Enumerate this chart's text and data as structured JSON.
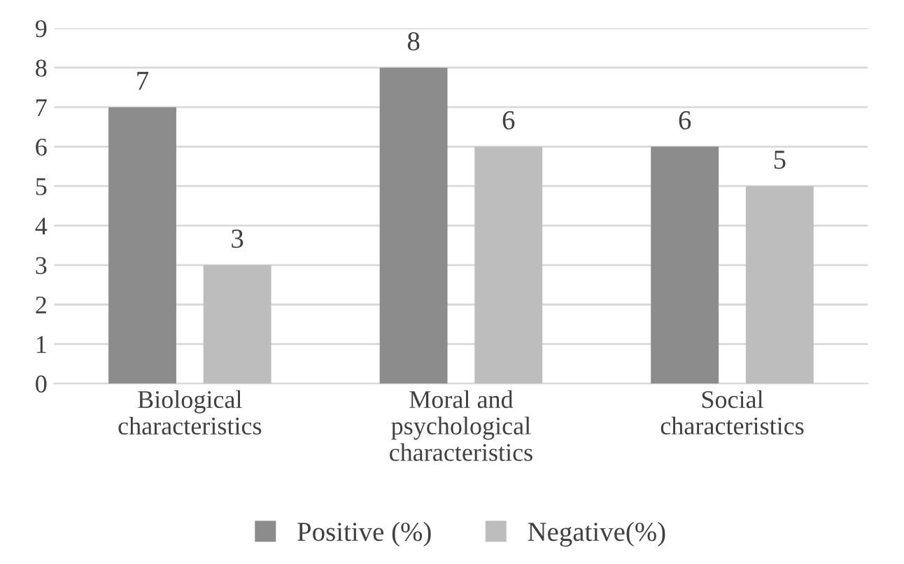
{
  "chart_data": {
    "type": "bar",
    "categories": [
      "Biological\ncharacteristics",
      "Moral and\npsychological\ncharacteristics",
      "Social\ncharacteristics"
    ],
    "series": [
      {
        "name": "Positive (%)",
        "color": "#8c8c8c",
        "values": [
          7,
          8,
          6
        ]
      },
      {
        "name": "Negative(%)",
        "color": "#bdbdbd",
        "values": [
          3,
          6,
          5
        ]
      }
    ],
    "ylim": [
      0,
      9
    ],
    "yticks": [
      0,
      1,
      2,
      3,
      4,
      5,
      6,
      7,
      8,
      9
    ],
    "grid": "y",
    "legend": "bottom",
    "data_labels": true
  }
}
